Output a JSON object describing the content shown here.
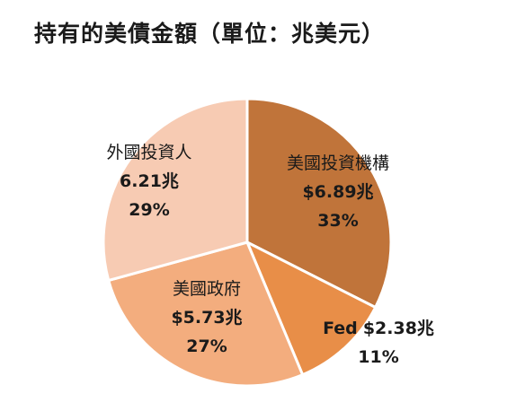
{
  "title": "持有的美債金額（單位：兆美元）",
  "chart_data": {
    "type": "pie",
    "title": "持有的美債金額（單位：兆美元）",
    "unit": "兆美元",
    "slices": [
      {
        "name": "美國投資機構",
        "value": 6.89,
        "value_label": "$6.89兆",
        "percent": 33,
        "percent_label": "33%",
        "color": "#C0743A"
      },
      {
        "name": "Fed",
        "value": 2.38,
        "value_label": "$2.38兆",
        "percent": 11,
        "percent_label": "11%",
        "color": "#E88E48"
      },
      {
        "name": "美國政府",
        "value": 5.73,
        "value_label": "$5.73兆",
        "percent": 27,
        "percent_label": "27%",
        "color": "#F3AD7E"
      },
      {
        "name": "外國投資人",
        "value": 6.21,
        "value_label": "6.21兆",
        "percent": 29,
        "percent_label": "29%",
        "color": "#F7CBB3"
      }
    ]
  }
}
